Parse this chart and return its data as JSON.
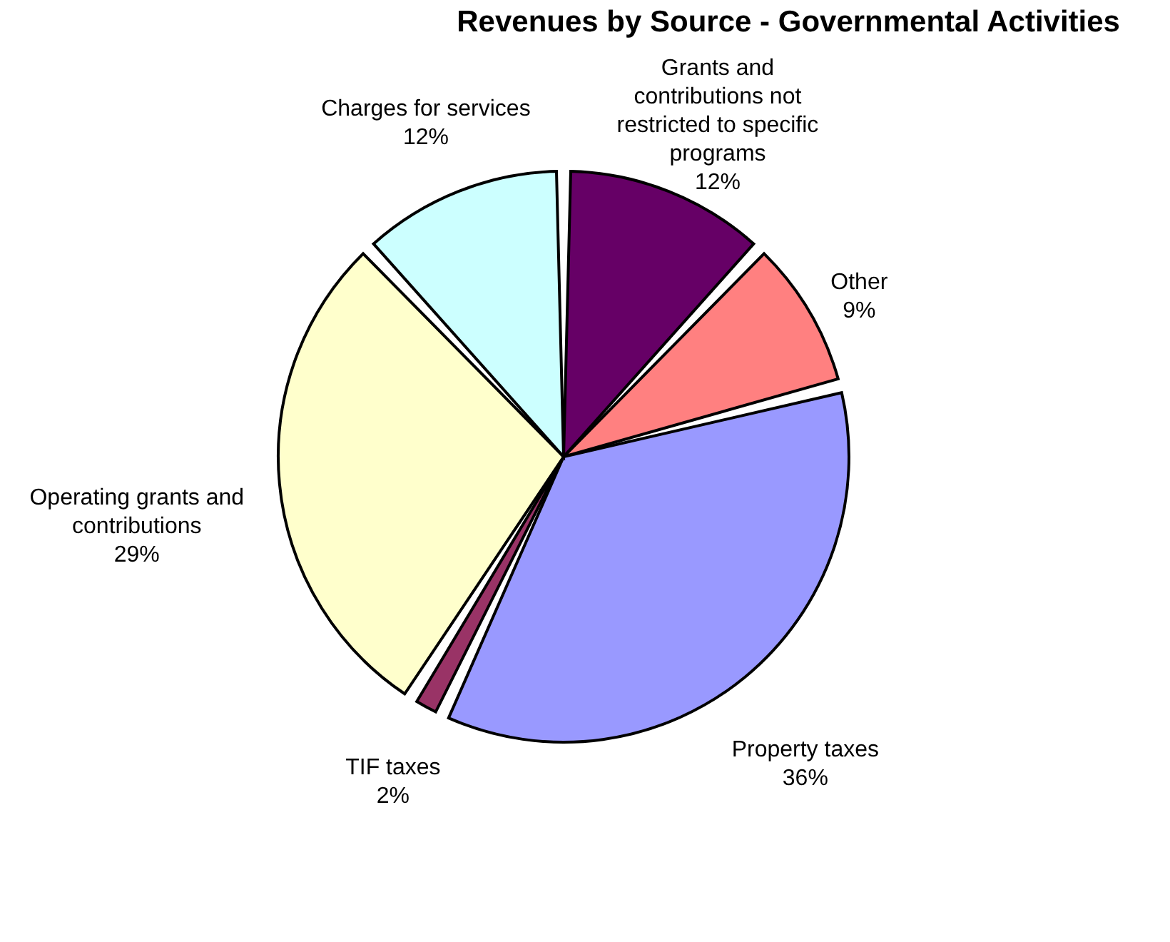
{
  "chart_data": {
    "type": "pie",
    "title": "Revenues by Source - Governmental Activities",
    "categories": [
      "Grants and contributions not restricted to specific programs",
      "Other",
      "Property taxes",
      "TIF taxes",
      "Operating grants and contributions",
      "Charges for services"
    ],
    "values": [
      12,
      9,
      36,
      2,
      29,
      12
    ],
    "value_labels": [
      "12%",
      "9%",
      "36%",
      "2%",
      "29%",
      "12%"
    ],
    "colors": [
      "#660066",
      "#ff8080",
      "#9999ff",
      "#993366",
      "#ffffcc",
      "#ccffff"
    ],
    "legend": false
  }
}
